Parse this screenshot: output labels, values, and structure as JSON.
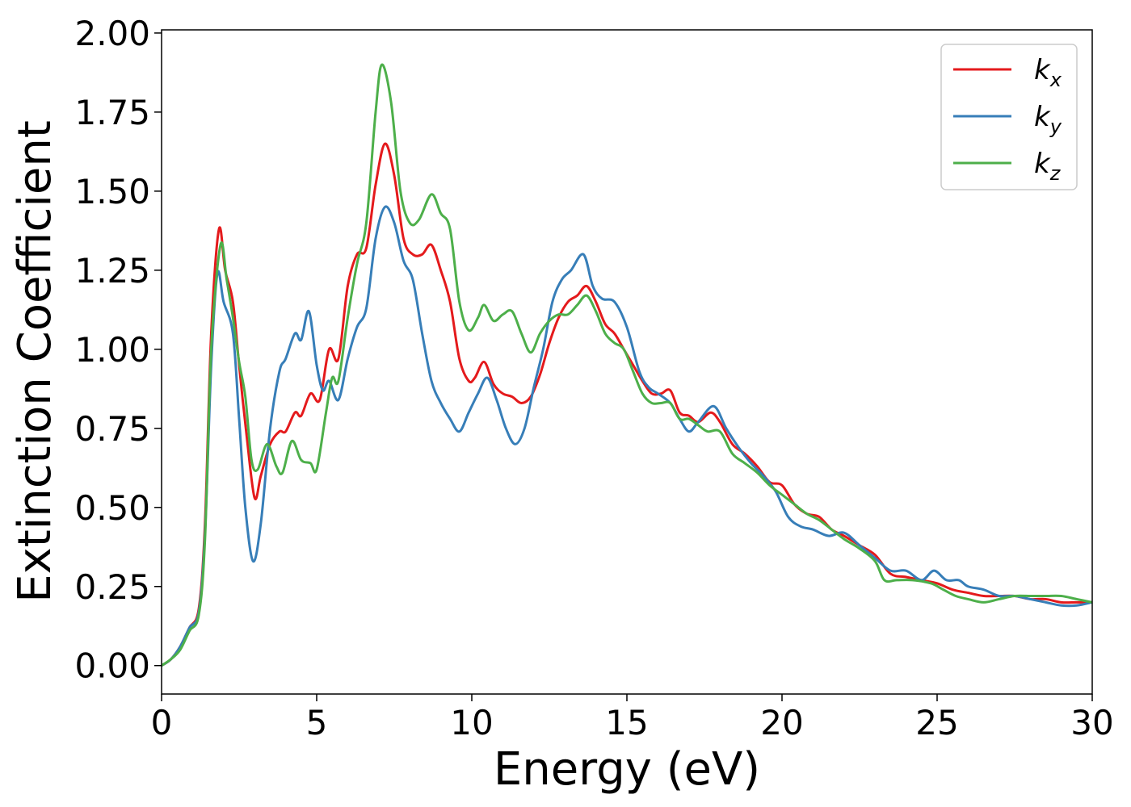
{
  "chart_data": {
    "type": "line",
    "title": "",
    "xlabel": "Energy (eV)",
    "ylabel": "Extinction Coefficient",
    "xlim": [
      0,
      30
    ],
    "ylim": [
      -0.09,
      2.01
    ],
    "xticks": [
      0,
      5,
      10,
      15,
      20,
      25,
      30
    ],
    "xtick_labels": [
      "0",
      "5",
      "10",
      "15",
      "20",
      "25",
      "30"
    ],
    "yticks": [
      0,
      0.25,
      0.5,
      0.75,
      1.0,
      1.25,
      1.5,
      1.75,
      2.0
    ],
    "ytick_labels": [
      "0.00",
      "0.25",
      "0.50",
      "0.75",
      "1.00",
      "1.25",
      "1.50",
      "1.75",
      "2.00"
    ],
    "grid": false,
    "legend_position": "top-right",
    "series": [
      {
        "name": "k",
        "subscript": "x",
        "color": "#e41a1c",
        "points": [
          [
            0,
            0
          ],
          [
            0.3,
            0.02
          ],
          [
            0.6,
            0.06
          ],
          [
            0.9,
            0.12
          ],
          [
            1.2,
            0.18
          ],
          [
            1.4,
            0.45
          ],
          [
            1.6,
            1.05
          ],
          [
            1.85,
            1.38
          ],
          [
            2.05,
            1.25
          ],
          [
            2.3,
            1.15
          ],
          [
            2.5,
            0.95
          ],
          [
            2.75,
            0.72
          ],
          [
            3.0,
            0.53
          ],
          [
            3.2,
            0.6
          ],
          [
            3.5,
            0.7
          ],
          [
            3.8,
            0.74
          ],
          [
            4.0,
            0.74
          ],
          [
            4.3,
            0.8
          ],
          [
            4.5,
            0.79
          ],
          [
            4.8,
            0.86
          ],
          [
            5.1,
            0.84
          ],
          [
            5.4,
            1.0
          ],
          [
            5.7,
            0.97
          ],
          [
            6.0,
            1.2
          ],
          [
            6.3,
            1.3
          ],
          [
            6.6,
            1.32
          ],
          [
            6.9,
            1.52
          ],
          [
            7.2,
            1.65
          ],
          [
            7.5,
            1.55
          ],
          [
            7.8,
            1.35
          ],
          [
            8.1,
            1.3
          ],
          [
            8.4,
            1.3
          ],
          [
            8.7,
            1.33
          ],
          [
            9.0,
            1.25
          ],
          [
            9.3,
            1.15
          ],
          [
            9.6,
            0.97
          ],
          [
            9.9,
            0.9
          ],
          [
            10.1,
            0.91
          ],
          [
            10.4,
            0.96
          ],
          [
            10.7,
            0.89
          ],
          [
            11.0,
            0.86
          ],
          [
            11.3,
            0.85
          ],
          [
            11.6,
            0.83
          ],
          [
            11.9,
            0.85
          ],
          [
            12.2,
            0.92
          ],
          [
            12.5,
            1.02
          ],
          [
            12.8,
            1.1
          ],
          [
            13.1,
            1.15
          ],
          [
            13.4,
            1.17
          ],
          [
            13.7,
            1.2
          ],
          [
            14.0,
            1.15
          ],
          [
            14.3,
            1.08
          ],
          [
            14.6,
            1.05
          ],
          [
            14.9,
            1.0
          ],
          [
            15.2,
            0.95
          ],
          [
            15.5,
            0.9
          ],
          [
            15.8,
            0.86
          ],
          [
            16.1,
            0.86
          ],
          [
            16.4,
            0.87
          ],
          [
            16.7,
            0.8
          ],
          [
            17.0,
            0.79
          ],
          [
            17.3,
            0.77
          ],
          [
            17.7,
            0.8
          ],
          [
            18.0,
            0.77
          ],
          [
            18.4,
            0.7
          ],
          [
            18.8,
            0.67
          ],
          [
            19.2,
            0.63
          ],
          [
            19.6,
            0.58
          ],
          [
            20.0,
            0.57
          ],
          [
            20.4,
            0.51
          ],
          [
            20.8,
            0.48
          ],
          [
            21.2,
            0.47
          ],
          [
            21.6,
            0.43
          ],
          [
            22.0,
            0.41
          ],
          [
            22.5,
            0.38
          ],
          [
            23.0,
            0.35
          ],
          [
            23.5,
            0.29
          ],
          [
            24.0,
            0.28
          ],
          [
            24.5,
            0.27
          ],
          [
            25.0,
            0.26
          ],
          [
            25.5,
            0.24
          ],
          [
            26.0,
            0.23
          ],
          [
            26.5,
            0.22
          ],
          [
            27.0,
            0.22
          ],
          [
            27.5,
            0.22
          ],
          [
            28.0,
            0.21
          ],
          [
            28.5,
            0.21
          ],
          [
            29.0,
            0.2
          ],
          [
            29.5,
            0.2
          ],
          [
            30.0,
            0.2
          ]
        ]
      },
      {
        "name": "k",
        "subscript": "y",
        "color": "#377eb8",
        "points": [
          [
            0,
            0
          ],
          [
            0.3,
            0.02
          ],
          [
            0.6,
            0.06
          ],
          [
            0.9,
            0.12
          ],
          [
            1.2,
            0.17
          ],
          [
            1.4,
            0.42
          ],
          [
            1.6,
            0.95
          ],
          [
            1.8,
            1.24
          ],
          [
            2.0,
            1.15
          ],
          [
            2.3,
            1.05
          ],
          [
            2.5,
            0.78
          ],
          [
            2.7,
            0.5
          ],
          [
            2.95,
            0.33
          ],
          [
            3.2,
            0.45
          ],
          [
            3.5,
            0.75
          ],
          [
            3.8,
            0.93
          ],
          [
            4.0,
            0.97
          ],
          [
            4.3,
            1.05
          ],
          [
            4.5,
            1.03
          ],
          [
            4.75,
            1.12
          ],
          [
            5.0,
            0.95
          ],
          [
            5.2,
            0.87
          ],
          [
            5.4,
            0.9
          ],
          [
            5.7,
            0.84
          ],
          [
            6.0,
            0.97
          ],
          [
            6.3,
            1.07
          ],
          [
            6.6,
            1.13
          ],
          [
            6.9,
            1.35
          ],
          [
            7.2,
            1.45
          ],
          [
            7.5,
            1.4
          ],
          [
            7.8,
            1.28
          ],
          [
            8.1,
            1.22
          ],
          [
            8.4,
            1.05
          ],
          [
            8.7,
            0.9
          ],
          [
            9.0,
            0.83
          ],
          [
            9.3,
            0.78
          ],
          [
            9.6,
            0.74
          ],
          [
            9.9,
            0.8
          ],
          [
            10.2,
            0.86
          ],
          [
            10.5,
            0.91
          ],
          [
            10.8,
            0.84
          ],
          [
            11.1,
            0.75
          ],
          [
            11.4,
            0.7
          ],
          [
            11.7,
            0.75
          ],
          [
            12.0,
            0.88
          ],
          [
            12.3,
            1.0
          ],
          [
            12.6,
            1.15
          ],
          [
            12.9,
            1.22
          ],
          [
            13.2,
            1.25
          ],
          [
            13.6,
            1.3
          ],
          [
            13.9,
            1.2
          ],
          [
            14.2,
            1.16
          ],
          [
            14.6,
            1.15
          ],
          [
            15.0,
            1.07
          ],
          [
            15.4,
            0.93
          ],
          [
            15.7,
            0.88
          ],
          [
            16.0,
            0.86
          ],
          [
            16.4,
            0.83
          ],
          [
            16.7,
            0.78
          ],
          [
            17.0,
            0.74
          ],
          [
            17.3,
            0.77
          ],
          [
            17.8,
            0.82
          ],
          [
            18.2,
            0.75
          ],
          [
            18.6,
            0.69
          ],
          [
            19.0,
            0.64
          ],
          [
            19.4,
            0.6
          ],
          [
            19.8,
            0.55
          ],
          [
            20.2,
            0.47
          ],
          [
            20.6,
            0.44
          ],
          [
            21.0,
            0.43
          ],
          [
            21.5,
            0.41
          ],
          [
            22.0,
            0.42
          ],
          [
            22.5,
            0.38
          ],
          [
            23.0,
            0.34
          ],
          [
            23.5,
            0.3
          ],
          [
            24.0,
            0.3
          ],
          [
            24.5,
            0.27
          ],
          [
            24.9,
            0.3
          ],
          [
            25.3,
            0.27
          ],
          [
            25.7,
            0.27
          ],
          [
            26.0,
            0.25
          ],
          [
            26.5,
            0.24
          ],
          [
            27.0,
            0.22
          ],
          [
            27.5,
            0.22
          ],
          [
            28.0,
            0.21
          ],
          [
            28.5,
            0.2
          ],
          [
            29.0,
            0.19
          ],
          [
            29.5,
            0.19
          ],
          [
            30.0,
            0.2
          ]
        ]
      },
      {
        "name": "k",
        "subscript": "z",
        "color": "#4daf4a",
        "points": [
          [
            0,
            0
          ],
          [
            0.3,
            0.02
          ],
          [
            0.6,
            0.05
          ],
          [
            0.9,
            0.11
          ],
          [
            1.2,
            0.16
          ],
          [
            1.4,
            0.4
          ],
          [
            1.6,
            1.0
          ],
          [
            1.9,
            1.33
          ],
          [
            2.1,
            1.22
          ],
          [
            2.3,
            1.1
          ],
          [
            2.5,
            0.96
          ],
          [
            2.7,
            0.85
          ],
          [
            2.9,
            0.65
          ],
          [
            3.1,
            0.62
          ],
          [
            3.4,
            0.7
          ],
          [
            3.7,
            0.63
          ],
          [
            3.9,
            0.61
          ],
          [
            4.2,
            0.71
          ],
          [
            4.5,
            0.65
          ],
          [
            4.8,
            0.64
          ],
          [
            5.0,
            0.62
          ],
          [
            5.3,
            0.8
          ],
          [
            5.5,
            0.91
          ],
          [
            5.7,
            0.9
          ],
          [
            6.0,
            1.1
          ],
          [
            6.3,
            1.27
          ],
          [
            6.6,
            1.4
          ],
          [
            6.9,
            1.75
          ],
          [
            7.1,
            1.9
          ],
          [
            7.4,
            1.78
          ],
          [
            7.7,
            1.5
          ],
          [
            8.0,
            1.4
          ],
          [
            8.3,
            1.41
          ],
          [
            8.7,
            1.49
          ],
          [
            9.0,
            1.43
          ],
          [
            9.3,
            1.38
          ],
          [
            9.6,
            1.15
          ],
          [
            9.9,
            1.06
          ],
          [
            10.2,
            1.1
          ],
          [
            10.4,
            1.14
          ],
          [
            10.7,
            1.09
          ],
          [
            11.0,
            1.11
          ],
          [
            11.3,
            1.12
          ],
          [
            11.6,
            1.05
          ],
          [
            11.9,
            0.99
          ],
          [
            12.2,
            1.05
          ],
          [
            12.5,
            1.09
          ],
          [
            12.8,
            1.11
          ],
          [
            13.1,
            1.11
          ],
          [
            13.4,
            1.14
          ],
          [
            13.7,
            1.17
          ],
          [
            14.0,
            1.12
          ],
          [
            14.3,
            1.05
          ],
          [
            14.6,
            1.02
          ],
          [
            14.9,
            1.0
          ],
          [
            15.2,
            0.93
          ],
          [
            15.5,
            0.86
          ],
          [
            15.8,
            0.83
          ],
          [
            16.1,
            0.83
          ],
          [
            16.4,
            0.83
          ],
          [
            16.7,
            0.78
          ],
          [
            17.0,
            0.78
          ],
          [
            17.3,
            0.76
          ],
          [
            17.6,
            0.74
          ],
          [
            18.0,
            0.74
          ],
          [
            18.4,
            0.67
          ],
          [
            18.8,
            0.64
          ],
          [
            19.2,
            0.61
          ],
          [
            19.6,
            0.57
          ],
          [
            20.0,
            0.54
          ],
          [
            20.4,
            0.51
          ],
          [
            20.8,
            0.48
          ],
          [
            21.2,
            0.46
          ],
          [
            21.6,
            0.43
          ],
          [
            22.0,
            0.4
          ],
          [
            22.5,
            0.37
          ],
          [
            23.0,
            0.33
          ],
          [
            23.3,
            0.27
          ],
          [
            23.7,
            0.27
          ],
          [
            24.2,
            0.27
          ],
          [
            24.8,
            0.26
          ],
          [
            25.2,
            0.24
          ],
          [
            25.6,
            0.22
          ],
          [
            26.0,
            0.21
          ],
          [
            26.5,
            0.2
          ],
          [
            27.0,
            0.21
          ],
          [
            27.5,
            0.22
          ],
          [
            28.0,
            0.22
          ],
          [
            28.5,
            0.22
          ],
          [
            29.0,
            0.22
          ],
          [
            29.5,
            0.21
          ],
          [
            30.0,
            0.2
          ]
        ]
      }
    ]
  }
}
